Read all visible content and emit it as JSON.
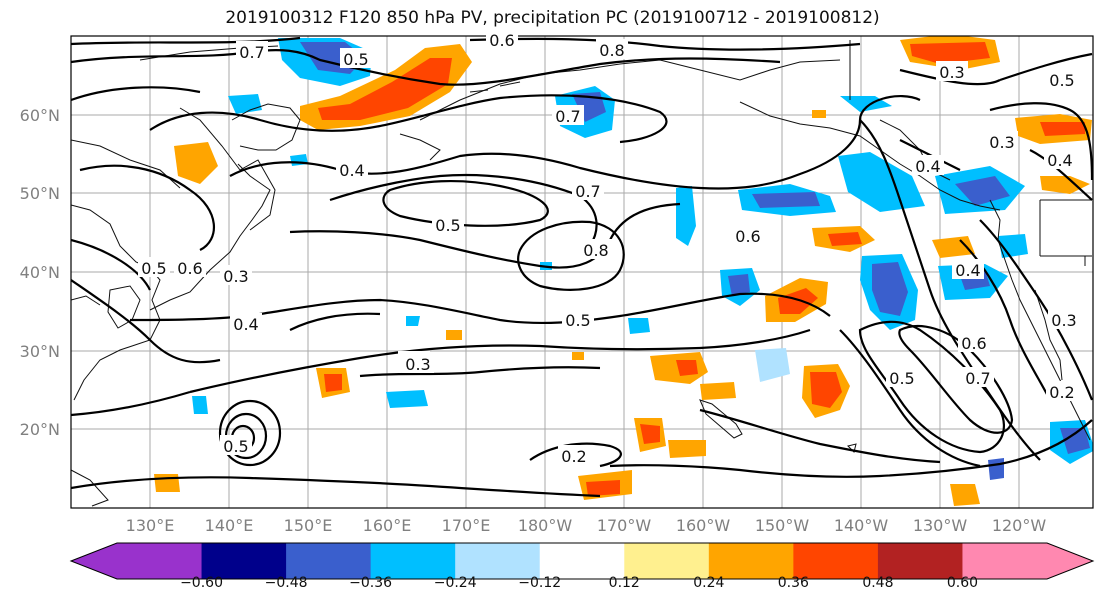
{
  "title": "2019100312 F120 850 hPa PV, precipitation PC (2019100712 - 2019100812)",
  "lat_labels": [
    "60°N",
    "50°N",
    "40°N",
    "30°N",
    "20°N"
  ],
  "lon_labels": [
    "130°E",
    "140°E",
    "150°E",
    "160°E",
    "170°E",
    "180°W",
    "170°W",
    "160°W",
    "150°W",
    "140°W",
    "130°W",
    "120°W"
  ],
  "colorbar": {
    "colors": [
      "#9932cc",
      "#00008b",
      "#3a5fcd",
      "#00bfff",
      "#b0e2ff",
      "#ffffff",
      "#fff08f",
      "#ffa500",
      "#ff4500",
      "#b22222",
      "#ff88b0"
    ],
    "tick_labels": [
      "-0.60",
      "-0.48",
      "-0.36",
      "-0.24",
      "-0.12",
      "0.12",
      "0.24",
      "0.36",
      "0.48",
      "0.60"
    ]
  },
  "contour_labels": [
    "0.7",
    "0.5",
    "0.8",
    "0.6",
    "0.7",
    "0.3",
    "0.5",
    "0.4",
    "0.3",
    "0.4",
    "0.7",
    "0.5",
    "0.8",
    "0.6",
    "0.4",
    "0.5",
    "0.4",
    "0.3",
    "0.5",
    "0.3",
    "0.6",
    "0.7",
    "0.5",
    "0.2",
    "0.5",
    "0.3",
    "0.2",
    "0.4",
    "0.3",
    "0.6"
  ]
}
